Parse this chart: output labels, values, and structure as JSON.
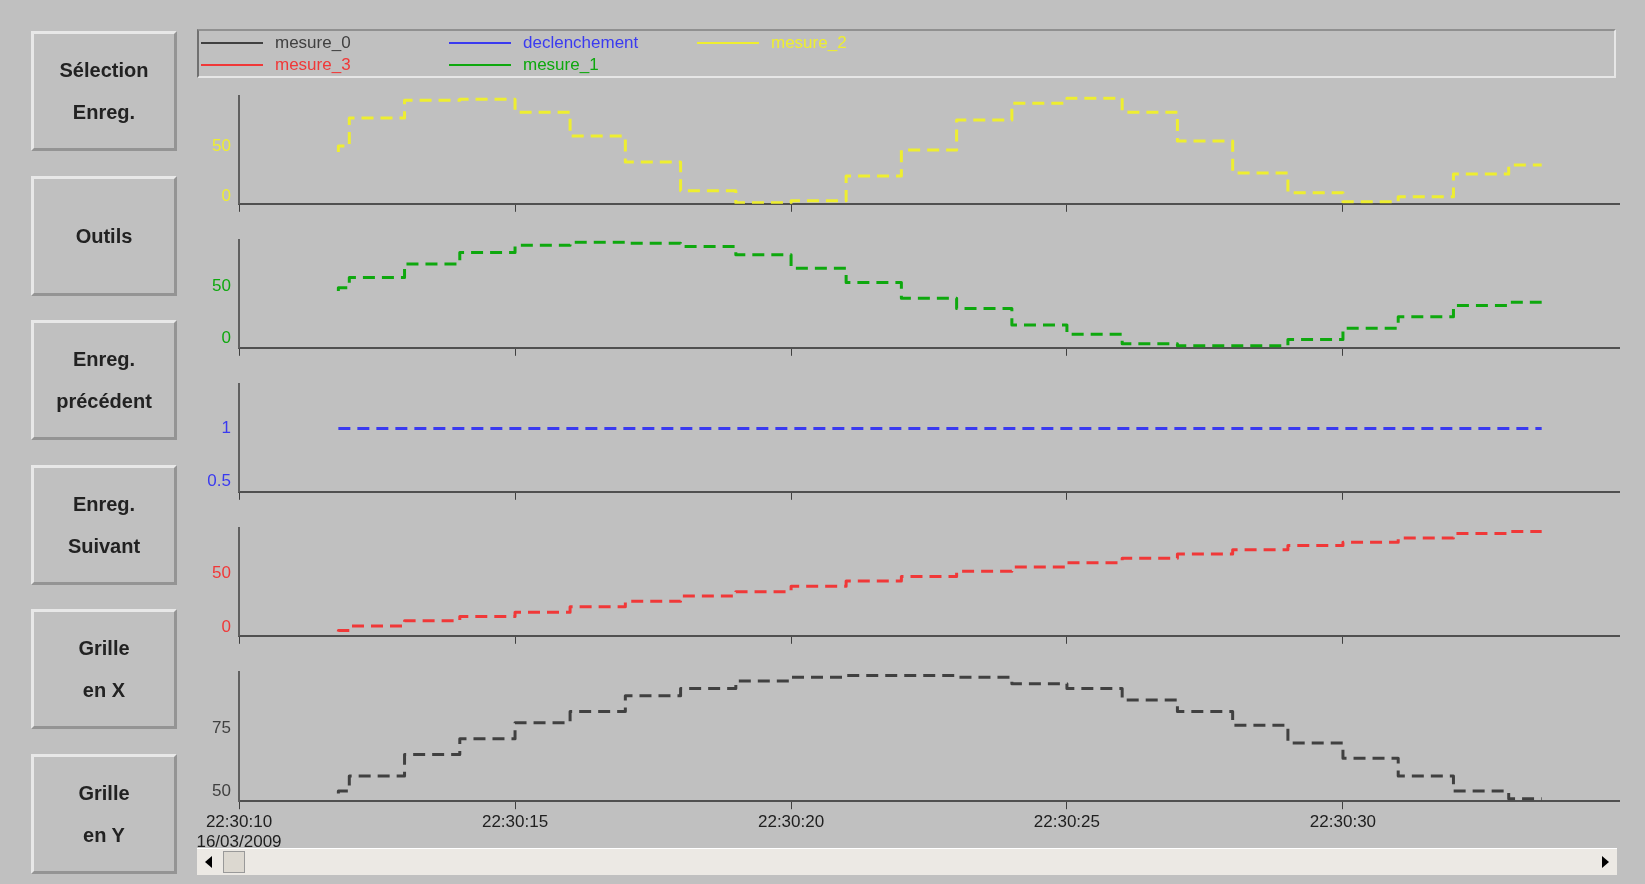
{
  "chart_data": [
    {
      "type": "other",
      "annotations": [
        "Sélection\nEnreg.",
        "Outils",
        "Enreg.\nprécédent",
        "Enreg.\nSuivant",
        "Grille\nen X",
        "Grille\nen Y"
      ]
    },
    {
      "type": "step",
      "line_style": "dashed",
      "marker": "none",
      "legend": "top",
      "tick_labels": "y",
      "xlim": [
        22.502778,
        22.509722
      ],
      "xticks": [
        {
          "value": 22.502778,
          "label": null
        },
        {
          "value": 22.504167,
          "label": null
        },
        {
          "value": 22.505556,
          "label": null
        },
        {
          "value": 22.506944,
          "label": null
        },
        {
          "value": 22.508333,
          "label": null
        }
      ],
      "ylim": [
        -8,
        100
      ],
      "yticks": [
        0,
        50
      ],
      "x": [
        22.503278,
        22.503333,
        22.503611,
        22.503889,
        22.504167,
        22.504444,
        22.504722,
        22.505,
        22.505278,
        22.505556,
        22.505833,
        22.506111,
        22.506389,
        22.506667,
        22.506944,
        22.507222,
        22.5075,
        22.507778,
        22.508056,
        22.508333,
        22.508611,
        22.508889,
        22.509167,
        22.509333
      ],
      "series": [
        {
          "name": "mesure_2",
          "color": "#eeee30",
          "values": [
            44,
            50,
            78,
            96,
            97,
            84,
            60,
            34,
            5,
            -7,
            -5,
            20,
            46,
            76,
            93,
            98,
            84,
            55,
            23,
            3,
            -6,
            -1,
            22,
            31
          ]
        }
      ]
    },
    {
      "type": "step",
      "line_style": "dashed",
      "marker": "none",
      "legend": "top",
      "tick_labels": "y",
      "xlim": [
        22.502778,
        22.509722
      ],
      "xticks": [
        {
          "value": 22.502778,
          "label": null
        },
        {
          "value": 22.504167,
          "label": null
        },
        {
          "value": 22.505556,
          "label": null
        },
        {
          "value": 22.506944,
          "label": null
        },
        {
          "value": 22.508333,
          "label": null
        }
      ],
      "ylim": [
        -9,
        95
      ],
      "yticks": [
        0,
        50
      ],
      "x": [
        22.503278,
        22.503333,
        22.503611,
        22.503889,
        22.504167,
        22.504444,
        22.504722,
        22.505,
        22.505278,
        22.505556,
        22.505833,
        22.506111,
        22.506389,
        22.506667,
        22.506944,
        22.507222,
        22.5075,
        22.507778,
        22.508056,
        22.508333,
        22.508611,
        22.508889,
        22.509167,
        22.509333
      ],
      "series": [
        {
          "name": "mesure_1",
          "color": "#0ea80e",
          "values": [
            46,
            49,
            59,
            72,
            83,
            90,
            93,
            92,
            89,
            81,
            68,
            54,
            39,
            29,
            13,
            4,
            -5,
            -7,
            -7,
            -1,
            10,
            21,
            32,
            35
          ]
        }
      ]
    },
    {
      "type": "step",
      "line_style": "dashed",
      "marker": "none",
      "legend": "top",
      "tick_labels": "y",
      "xlim": [
        22.502778,
        22.509722
      ],
      "xticks": [
        {
          "value": 22.502778,
          "label": null
        },
        {
          "value": 22.504167,
          "label": null
        },
        {
          "value": 22.505556,
          "label": null
        },
        {
          "value": 22.506944,
          "label": null
        },
        {
          "value": 22.508333,
          "label": null
        }
      ],
      "ylim": [
        0.4,
        1.42
      ],
      "yticks": [
        0.5,
        1
      ],
      "x": [
        22.503278,
        22.509333
      ],
      "series": [
        {
          "name": "declenchement",
          "color": "#3a3af0",
          "values": [
            1,
            1
          ]
        }
      ]
    },
    {
      "type": "step",
      "line_style": "dashed",
      "marker": "none",
      "legend": "top",
      "tick_labels": "y",
      "xlim": [
        22.502778,
        22.509722
      ],
      "xticks": [
        {
          "value": 22.502778,
          "label": null
        },
        {
          "value": 22.504167,
          "label": null
        },
        {
          "value": 22.505556,
          "label": null
        },
        {
          "value": 22.506944,
          "label": null
        },
        {
          "value": 22.508333,
          "label": null
        }
      ],
      "ylim": [
        -8,
        92
      ],
      "yticks": [
        0,
        50
      ],
      "x": [
        22.503278,
        22.503333,
        22.503611,
        22.503889,
        22.504167,
        22.504444,
        22.504722,
        22.505,
        22.505278,
        22.505556,
        22.505833,
        22.506111,
        22.506389,
        22.506667,
        22.506944,
        22.507222,
        22.5075,
        22.507778,
        22.508056,
        22.508333,
        22.508611,
        22.508889,
        22.509167,
        22.509333
      ],
      "series": [
        {
          "name": "mesure_3",
          "color": "#f03838",
          "values": [
            -4,
            -3,
            1,
            6,
            10,
            14,
            19,
            24,
            29,
            33,
            38,
            43,
            47,
            52,
            56,
            60,
            64,
            68,
            72,
            76,
            79,
            83,
            87,
            89
          ]
        }
      ]
    },
    {
      "type": "step",
      "line_style": "dashed",
      "marker": "none",
      "legend": "top",
      "xlim": [
        22.502778,
        22.509722
      ],
      "xticks": [
        {
          "value": 22.502778,
          "label": "22:30:10\n16/03/2009"
        },
        {
          "value": 22.504167,
          "label": "22:30:15"
        },
        {
          "value": 22.505556,
          "label": "22:30:20"
        },
        {
          "value": 22.506944,
          "label": "22:30:25"
        },
        {
          "value": 22.508333,
          "label": "22:30:30"
        }
      ],
      "ylim": [
        46,
        97
      ],
      "yticks": [
        50,
        75
      ],
      "x": [
        22.503278,
        22.503333,
        22.503611,
        22.503889,
        22.504167,
        22.504444,
        22.504722,
        22.505,
        22.505278,
        22.505556,
        22.505833,
        22.506111,
        22.506389,
        22.506667,
        22.506944,
        22.507222,
        22.5075,
        22.507778,
        22.508056,
        22.508333,
        22.508611,
        22.508889,
        22.509167,
        22.509333
      ],
      "series": [
        {
          "name": "mesure_0",
          "color": "#404040",
          "values": [
            49,
            50,
            56,
            64.5,
            70.7,
            77,
            81.5,
            87.7,
            90.6,
            93.5,
            95,
            95.7,
            95.7,
            95,
            92.4,
            90.6,
            86,
            81.5,
            76,
            69,
            63,
            56,
            50,
            47
          ]
        }
      ]
    }
  ]
}
